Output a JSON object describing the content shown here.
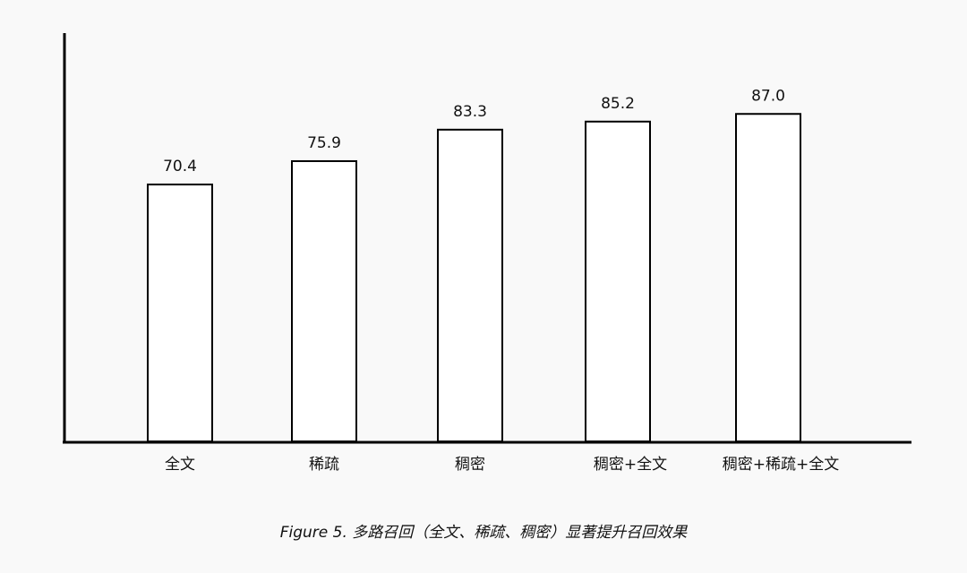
{
  "chart_data": {
    "type": "bar",
    "categories": [
      "全文",
      "稀疏",
      "稠密",
      "稠密+全文",
      "稠密+稀疏+全文"
    ],
    "values": [
      70.4,
      75.9,
      83.3,
      85.2,
      87.0
    ],
    "value_labels": [
      "70.4",
      "75.9",
      "83.3",
      "85.2",
      "87.0"
    ],
    "title": "",
    "xlabel": "",
    "ylabel": "",
    "ylim": [
      10,
      106
    ],
    "grid": false,
    "bar_fill": "#ffffff",
    "bar_stroke": "#000000",
    "caption": "Figure 5. 多路召回（全文、稀疏、稠密）显著提升召回效果"
  }
}
